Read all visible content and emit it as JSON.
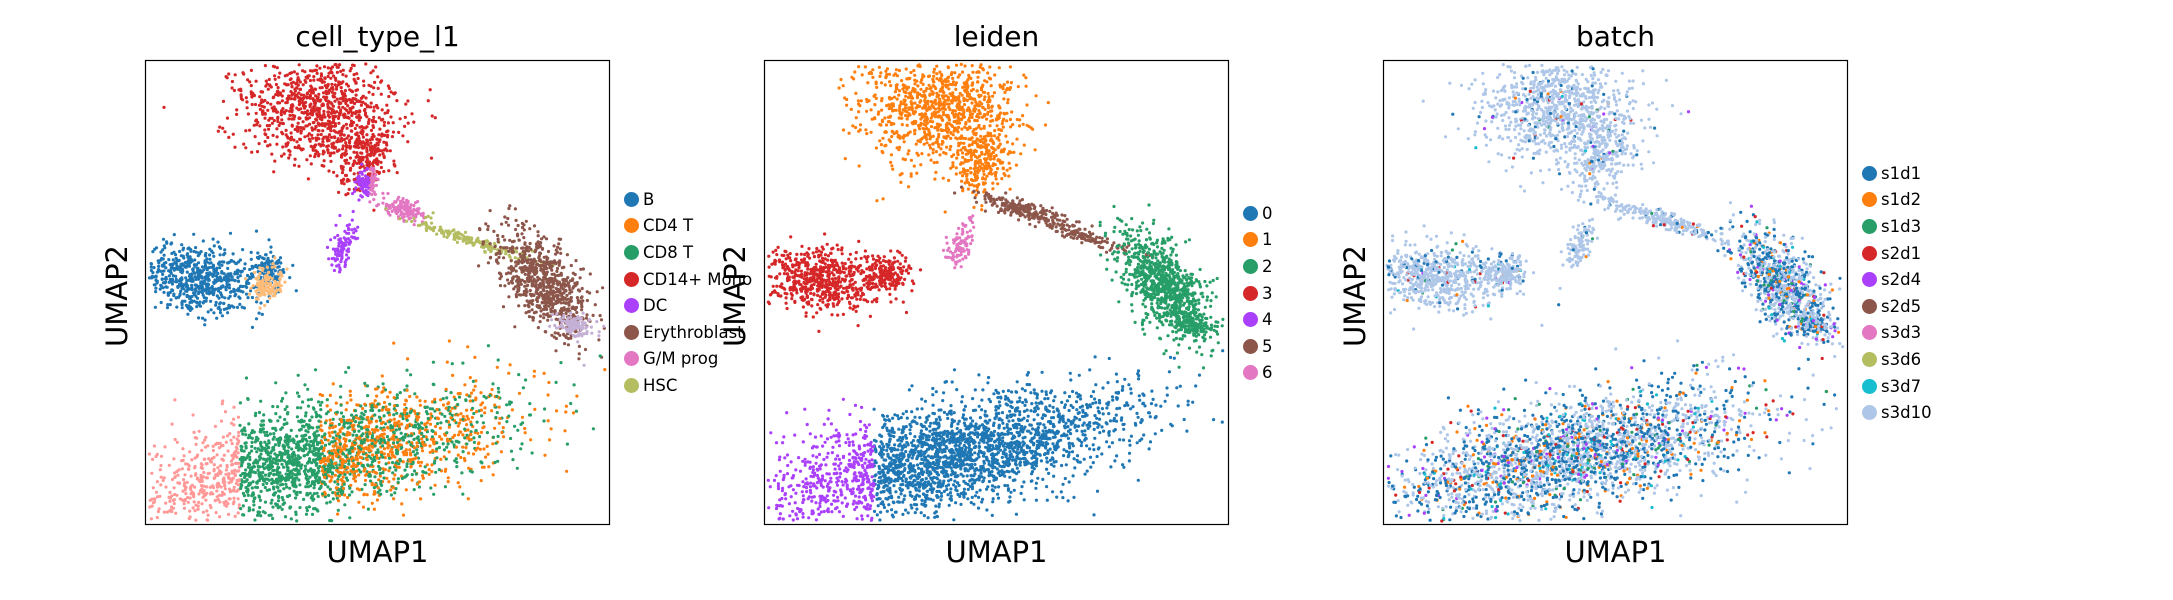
{
  "panels": [
    {
      "title": "cell_type_l1",
      "xlabel": "UMAP1",
      "ylabel": "UMAP2",
      "legend": [
        {
          "label": "B",
          "color": "#1f77b4"
        },
        {
          "label": "CD4 T",
          "color": "#ff7f0e"
        },
        {
          "label": "CD8 T",
          "color": "#279e68"
        },
        {
          "label": "CD14+ Mono",
          "color": "#d62728"
        },
        {
          "label": "DC",
          "color": "#aa40fc"
        },
        {
          "label": "Erythroblast",
          "color": "#8c564b"
        },
        {
          "label": "G/M prog",
          "color": "#e377c2"
        },
        {
          "label": "HSC",
          "color": "#b5bd61"
        }
      ]
    },
    {
      "title": "leiden",
      "xlabel": "UMAP1",
      "ylabel": "UMAP2",
      "legend": [
        {
          "label": "0",
          "color": "#1f77b4"
        },
        {
          "label": "1",
          "color": "#ff7f0e"
        },
        {
          "label": "2",
          "color": "#279e68"
        },
        {
          "label": "3",
          "color": "#d62728"
        },
        {
          "label": "4",
          "color": "#aa40fc"
        },
        {
          "label": "5",
          "color": "#8c564b"
        },
        {
          "label": "6",
          "color": "#e377c2"
        }
      ]
    },
    {
      "title": "batch",
      "xlabel": "UMAP1",
      "ylabel": "UMAP2",
      "legend": [
        {
          "label": "s1d1",
          "color": "#1f77b4"
        },
        {
          "label": "s1d2",
          "color": "#ff7f0e"
        },
        {
          "label": "s1d3",
          "color": "#279e68"
        },
        {
          "label": "s2d1",
          "color": "#d62728"
        },
        {
          "label": "s2d4",
          "color": "#aa40fc"
        },
        {
          "label": "s2d5",
          "color": "#8c564b"
        },
        {
          "label": "s3d3",
          "color": "#e377c2"
        },
        {
          "label": "s3d6",
          "color": "#b5bd61"
        },
        {
          "label": "s3d7",
          "color": "#17becf"
        },
        {
          "label": "s3d10",
          "color": "#aec7e8"
        }
      ]
    }
  ],
  "chart_data": [
    {
      "type": "scatter",
      "title": "cell_type_l1",
      "xlabel": "UMAP1",
      "ylabel": "UMAP2",
      "ticks": "none",
      "legend_position": "right",
      "categories": [
        "B",
        "CD4 T",
        "CD8 T",
        "CD14+ Mono",
        "DC",
        "Erythroblast",
        "G/M prog",
        "HSC"
      ]
    },
    {
      "type": "scatter",
      "title": "leiden",
      "xlabel": "UMAP1",
      "ylabel": "UMAP2",
      "ticks": "none",
      "legend_position": "right",
      "categories": [
        "0",
        "1",
        "2",
        "3",
        "4",
        "5",
        "6"
      ]
    },
    {
      "type": "scatter",
      "title": "batch",
      "xlabel": "UMAP1",
      "ylabel": "UMAP2",
      "ticks": "none",
      "legend_position": "right",
      "categories": [
        "s1d1",
        "s1d2",
        "s1d3",
        "s2d1",
        "s2d4",
        "s2d5",
        "s3d3",
        "s3d6",
        "s3d7",
        "s3d10"
      ]
    }
  ]
}
